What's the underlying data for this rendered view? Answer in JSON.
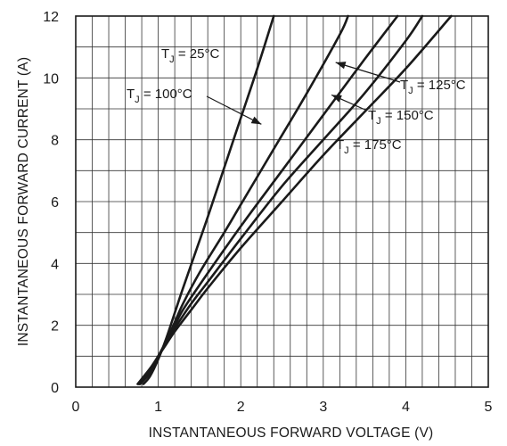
{
  "chart_data": {
    "type": "line",
    "xlabel": "INSTANTANEOUS FORWARD VOLTAGE (V)",
    "ylabel": "INSTANTANEOUS FORWARD CURRENT (A)",
    "xlim": [
      0,
      5
    ],
    "ylim": [
      0,
      12
    ],
    "xticks": [
      0,
      1,
      2,
      3,
      4,
      5
    ],
    "yticks": [
      0,
      2,
      4,
      6,
      8,
      10,
      12
    ],
    "grid": {
      "x_minor_step": 0.2,
      "y_major_step": 1
    },
    "series": [
      {
        "name": "TJ = 25°C",
        "x": [
          0.82,
          0.9,
          1.0,
          1.1,
          1.2,
          1.3,
          1.45,
          1.6,
          1.8,
          2.0,
          2.2,
          2.4
        ],
        "y": [
          0.1,
          0.35,
          0.9,
          1.6,
          2.4,
          3.2,
          4.35,
          5.5,
          7.1,
          8.7,
          10.3,
          12.0
        ]
      },
      {
        "name": "TJ = 100°C",
        "x": [
          0.78,
          0.9,
          1.0,
          1.1,
          1.2,
          1.3,
          1.5,
          1.8,
          2.0,
          2.4,
          2.8,
          3.2,
          3.3
        ],
        "y": [
          0.1,
          0.45,
          0.95,
          1.5,
          2.1,
          2.7,
          3.7,
          5.0,
          5.9,
          7.7,
          9.5,
          11.4,
          12.0
        ]
      },
      {
        "name": "TJ = 125°C",
        "x": [
          0.77,
          0.9,
          1.0,
          1.1,
          1.2,
          1.3,
          1.5,
          2.0,
          2.5,
          3.0,
          3.5,
          3.9
        ],
        "y": [
          0.1,
          0.5,
          1.0,
          1.5,
          2.0,
          2.5,
          3.3,
          5.2,
          7.0,
          8.8,
          10.6,
          12.0
        ]
      },
      {
        "name": "TJ = 150°C",
        "x": [
          0.76,
          0.9,
          1.0,
          1.1,
          1.2,
          1.4,
          1.6,
          2.0,
          2.5,
          3.0,
          3.5,
          4.0,
          4.2
        ],
        "y": [
          0.1,
          0.55,
          1.0,
          1.45,
          1.9,
          2.7,
          3.4,
          4.8,
          6.5,
          8.0,
          9.5,
          11.2,
          12.0
        ]
      },
      {
        "name": "TJ = 175°C",
        "x": [
          0.75,
          0.9,
          1.0,
          1.1,
          1.2,
          1.4,
          1.6,
          2.0,
          2.5,
          3.0,
          3.5,
          4.0,
          4.55
        ],
        "y": [
          0.1,
          0.6,
          1.0,
          1.4,
          1.8,
          2.5,
          3.2,
          4.5,
          6.0,
          7.5,
          8.9,
          10.3,
          12.0
        ]
      }
    ],
    "annotations": [
      {
        "base": "T",
        "sub": "J",
        "suffix": " = 25°C",
        "series": 0,
        "arrow": false
      },
      {
        "base": "T",
        "sub": "J",
        "suffix": " = 100°C",
        "series": 1,
        "arrow": true,
        "point": [
          2.25,
          8.5
        ]
      },
      {
        "base": "T",
        "sub": "J",
        "suffix": " = 125°C",
        "series": 2,
        "arrow": true,
        "point": [
          3.15,
          10.5
        ]
      },
      {
        "base": "T",
        "sub": "J",
        "suffix": " = 150°C",
        "series": 3,
        "arrow": true,
        "point": [
          3.1,
          9.45
        ]
      },
      {
        "base": "T",
        "sub": "J",
        "suffix": " = 175°C",
        "series": 4,
        "arrow": false
      }
    ]
  },
  "colors": {
    "line": "#1a1a1a",
    "grid": "#333333",
    "background": "#ffffff"
  }
}
